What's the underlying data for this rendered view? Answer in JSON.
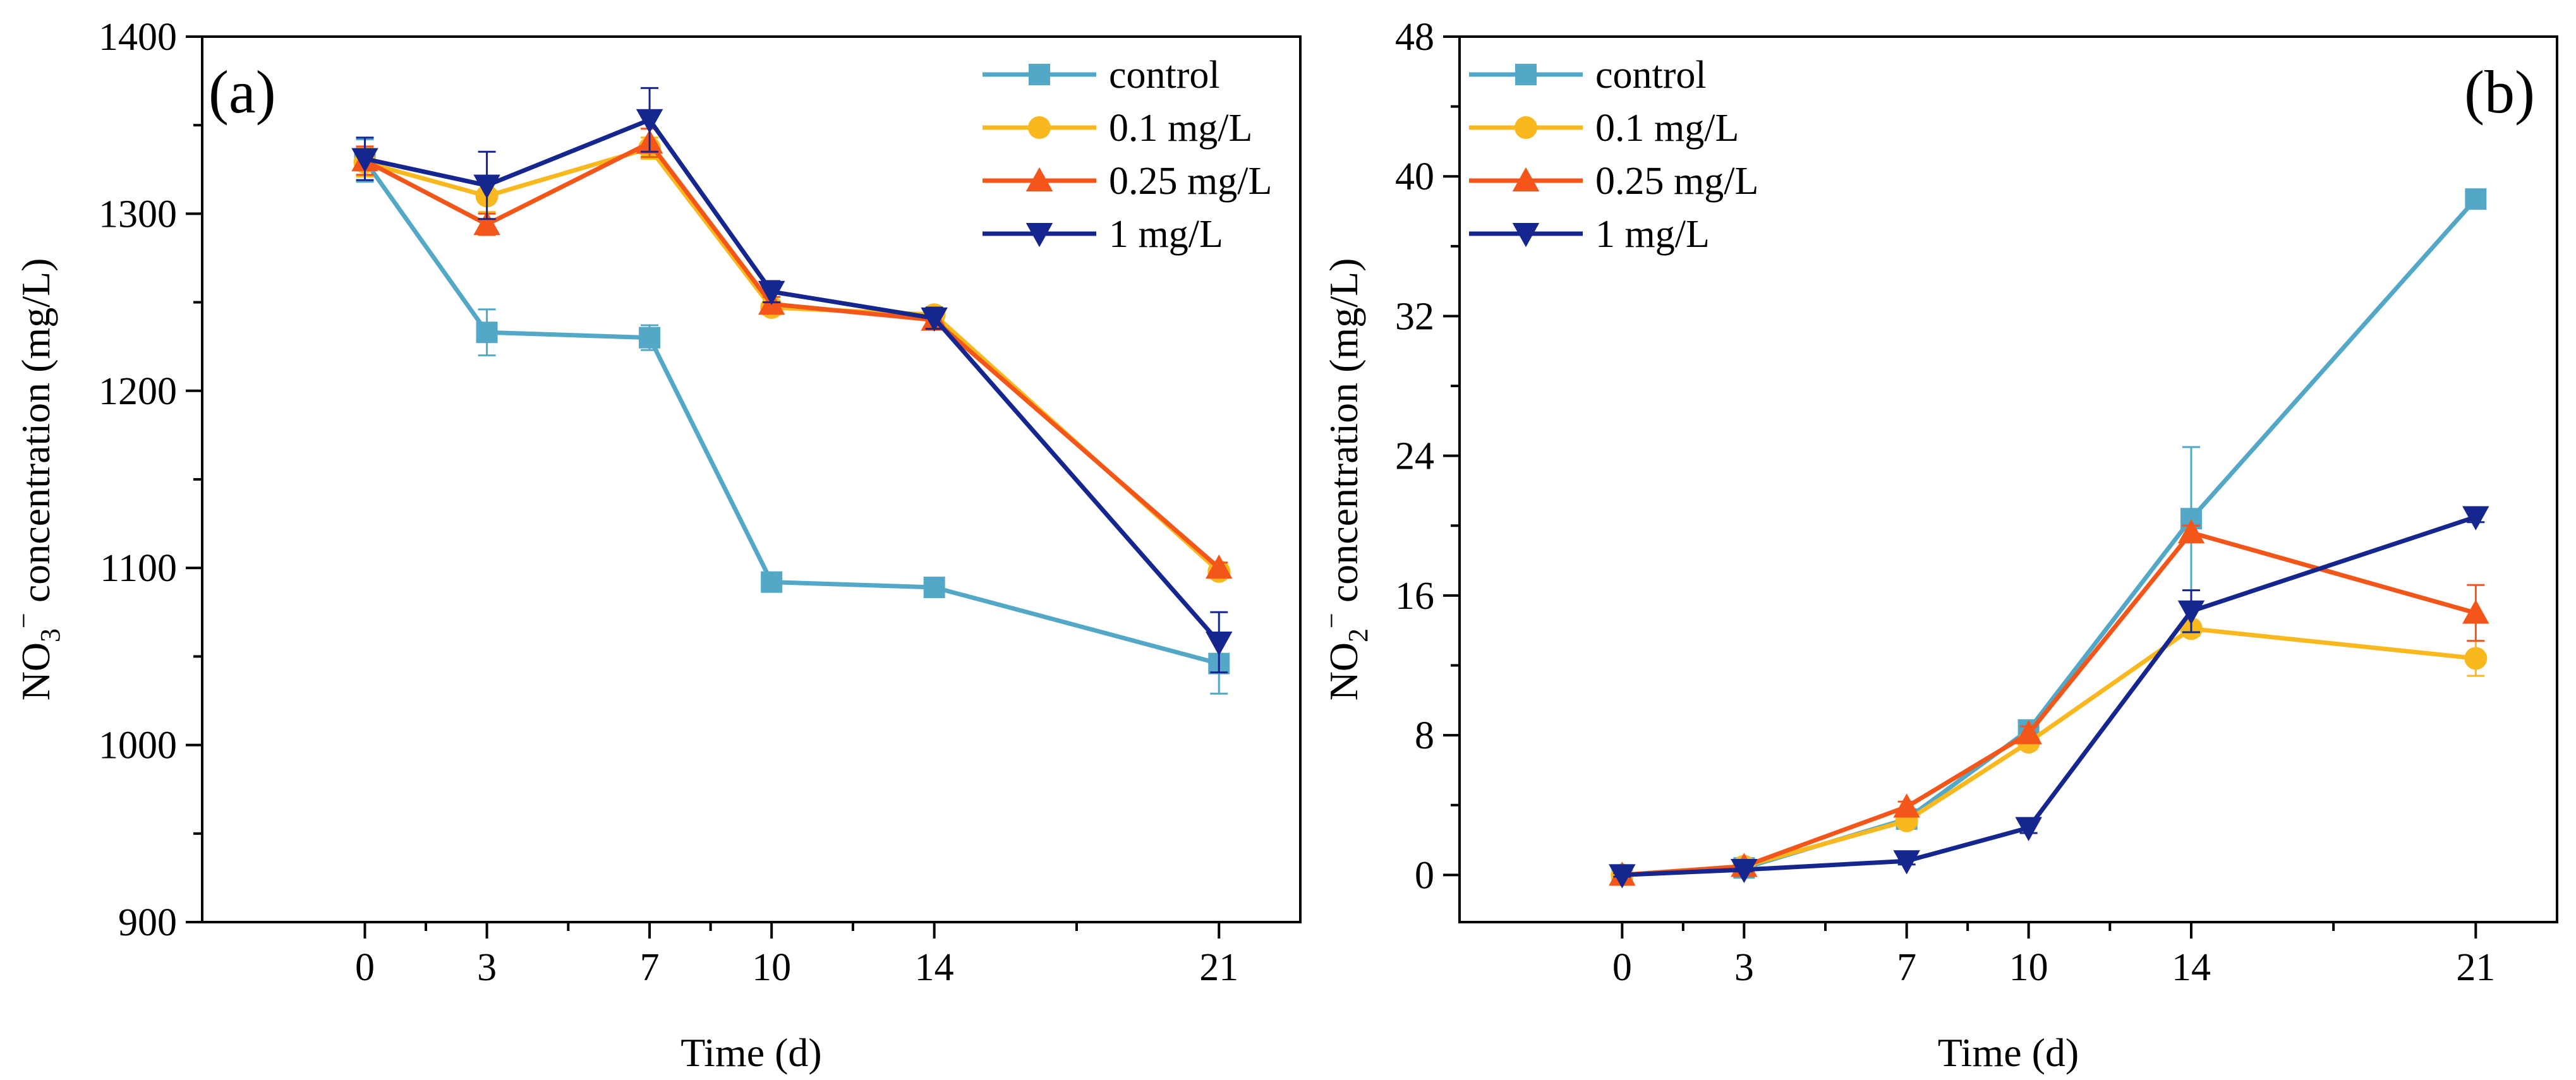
{
  "colors": {
    "control": "#52a8c6",
    "c01": "#f9b81e",
    "c025": "#f4561a",
    "c1": "#15268f"
  },
  "chart_data": [
    {
      "type": "line",
      "panel_label": "(a)",
      "xlabel": "Time (d)",
      "ylabel_parts": {
        "base": "NO",
        "sub": "3",
        "sup": "−",
        "rest": " concentration (mg/L)"
      },
      "x": [
        0,
        3,
        7,
        10,
        14,
        21
      ],
      "xlim": [
        -4,
        23
      ],
      "xticks": [
        0,
        3,
        7,
        10,
        14,
        21
      ],
      "ylim": [
        900,
        1400
      ],
      "yticks": [
        900,
        1000,
        1100,
        1200,
        1300,
        1400
      ],
      "legend_position": "top-right",
      "series": [
        {
          "name": "control",
          "color": "#52a8c6",
          "marker": "square",
          "values": [
            1330,
            1233,
            1230,
            1092,
            1089,
            1046
          ],
          "errors": [
            12,
            13,
            7,
            3,
            3,
            17
          ]
        },
        {
          "name": "0.1 mg/L",
          "color": "#f9b81e",
          "marker": "circle",
          "values": [
            1329,
            1310,
            1337,
            1247,
            1243,
            1098
          ],
          "errors": [
            8,
            9,
            6,
            4,
            4,
            3
          ]
        },
        {
          "name": "0.25 mg/L",
          "color": "#f4561a",
          "marker": "triangle-up",
          "values": [
            1330,
            1294,
            1340,
            1249,
            1240,
            1100
          ],
          "errors": [
            8,
            6,
            8,
            4,
            4,
            3
          ]
        },
        {
          "name": "1 mg/L",
          "color": "#15268f",
          "marker": "triangle-down",
          "values": [
            1331,
            1316,
            1353,
            1256,
            1241,
            1058
          ],
          "errors": [
            12,
            19,
            18,
            6,
            6,
            17
          ]
        }
      ]
    },
    {
      "type": "line",
      "panel_label": "(b)",
      "xlabel": "Time (d)",
      "ylabel_parts": {
        "base": "NO",
        "sub": "2",
        "sup": "−",
        "rest": " concentration (mg/L)"
      },
      "x": [
        0,
        3,
        7,
        10,
        14,
        21
      ],
      "xlim": [
        -4,
        23
      ],
      "xticks": [
        0,
        3,
        7,
        10,
        14,
        21
      ],
      "ylim": [
        -2.7,
        48
      ],
      "yticks": [
        0,
        8,
        16,
        24,
        32,
        40,
        48
      ],
      "legend_position": "top-left",
      "series": [
        {
          "name": "control",
          "color": "#52a8c6",
          "marker": "square",
          "values": [
            0,
            0.4,
            3.2,
            8.3,
            20.4,
            38.7
          ],
          "errors": [
            0.1,
            0.2,
            0.3,
            0.4,
            4.1,
            0.2
          ]
        },
        {
          "name": "0.1 mg/L",
          "color": "#f9b81e",
          "marker": "circle",
          "values": [
            0,
            0.5,
            3.1,
            7.6,
            14.1,
            12.4
          ],
          "errors": [
            0.1,
            0.2,
            0.3,
            0.4,
            0.4,
            1.0
          ]
        },
        {
          "name": "0.25 mg/L",
          "color": "#f4561a",
          "marker": "triangle-up",
          "values": [
            0,
            0.5,
            3.9,
            8.1,
            19.6,
            15.0
          ],
          "errors": [
            0.1,
            0.2,
            0.3,
            0.4,
            0.4,
            1.6
          ]
        },
        {
          "name": "1 mg/L",
          "color": "#15268f",
          "marker": "triangle-down",
          "values": [
            0,
            0.3,
            0.8,
            2.7,
            15.1,
            20.5
          ],
          "errors": [
            0.1,
            0.1,
            0.2,
            0.3,
            1.2,
            0.3
          ]
        }
      ]
    }
  ]
}
